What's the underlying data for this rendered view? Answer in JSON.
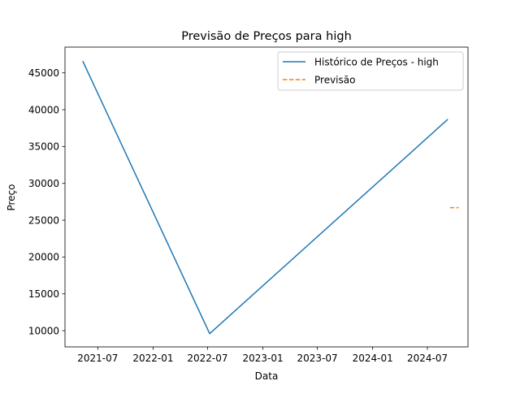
{
  "chart_data": {
    "type": "line",
    "title": "Previsão de Preços para high",
    "xlabel": "Data",
    "ylabel": "Preço",
    "x_type": "date",
    "xlim": [
      "2021-03-14",
      "2024-11-13"
    ],
    "ylim": [
      7800,
      48500
    ],
    "x_ticks": [
      "2021-07-01",
      "2022-01-01",
      "2022-07-01",
      "2023-01-01",
      "2023-07-01",
      "2024-01-01",
      "2024-07-01"
    ],
    "x_tick_labels": [
      "2021-07",
      "2022-01",
      "2022-07",
      "2023-01",
      "2023-07",
      "2024-01",
      "2024-07"
    ],
    "y_ticks": [
      10000,
      15000,
      20000,
      25000,
      30000,
      35000,
      40000,
      45000
    ],
    "y_tick_labels": [
      "10000",
      "15000",
      "20000",
      "25000",
      "30000",
      "35000",
      "40000",
      "45000"
    ],
    "grid": false,
    "legend_position": "upper right",
    "series": [
      {
        "name": "Histórico de Preços - high",
        "color": "#1f77b4",
        "line_style": "solid",
        "x": [
          "2021-05-12",
          "2022-07-08",
          "2024-09-07"
        ],
        "y": [
          46600,
          9600,
          38700
        ]
      },
      {
        "name": "Previsão",
        "color": "#ff7f0e",
        "line_style": "dashed",
        "x": [
          "2024-09-14",
          "2024-10-13"
        ],
        "y": [
          26700,
          26700
        ]
      }
    ]
  }
}
